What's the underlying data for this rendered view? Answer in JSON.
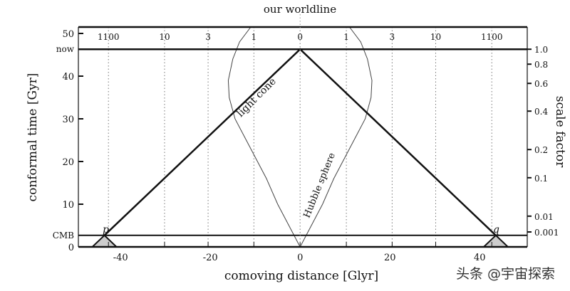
{
  "title": "our worldline",
  "x_axis": {
    "label": "comoving distance [Glyr]",
    "ticks": [
      -40,
      -20,
      0,
      20,
      40
    ],
    "range": [
      -49.4,
      50.6
    ]
  },
  "y_axis_left": {
    "label": "conformal time [Gyr]",
    "ticks": [
      0,
      10,
      20,
      30,
      40,
      50
    ],
    "range": [
      0,
      51.5
    ],
    "special": [
      {
        "label": "now",
        "t": 46.3
      },
      {
        "label": "CMB",
        "t": 2.7
      }
    ]
  },
  "y_axis_right": {
    "label": "scale factor",
    "ticks": [
      {
        "label": "1.0",
        "t": 46.3
      },
      {
        "label": "0.8",
        "t": 42.8
      },
      {
        "label": "0.6",
        "t": 38.3
      },
      {
        "label": "0.4",
        "t": 31.8
      },
      {
        "label": "0.2",
        "t": 22.8
      },
      {
        "label": "0.1",
        "t": 16.2
      },
      {
        "label": "0.01",
        "t": 7.2
      },
      {
        "label": "0.001",
        "t": 3.5
      }
    ]
  },
  "redshift_lines": [
    {
      "label": "1100",
      "x": -42.7
    },
    {
      "label": "10",
      "x": -30.2
    },
    {
      "label": "3",
      "x": -20.5
    },
    {
      "label": "1",
      "x": -10.3
    },
    {
      "label": "0",
      "x": 0
    },
    {
      "label": "1",
      "x": 10.3
    },
    {
      "label": "3",
      "x": 20.5
    },
    {
      "label": "10",
      "x": 30.2
    },
    {
      "label": "1100",
      "x": 42.7
    }
  ],
  "annotations": {
    "light_cone": "light cone",
    "hubble_sphere": "Hubble sphere",
    "p": "p",
    "q": "q"
  },
  "hubble_sphere_right_half": [
    [
      0,
      0
    ],
    [
      2.5,
      5
    ],
    [
      5,
      10
    ],
    [
      7.5,
      16
    ],
    [
      10,
      21
    ],
    [
      12.5,
      26
    ],
    [
      14.5,
      30
    ],
    [
      15.8,
      35
    ],
    [
      16,
      39
    ],
    [
      15,
      44
    ],
    [
      13.5,
      48
    ],
    [
      11,
      51.5
    ]
  ],
  "watermark": "头条 @宇宙探索"
}
